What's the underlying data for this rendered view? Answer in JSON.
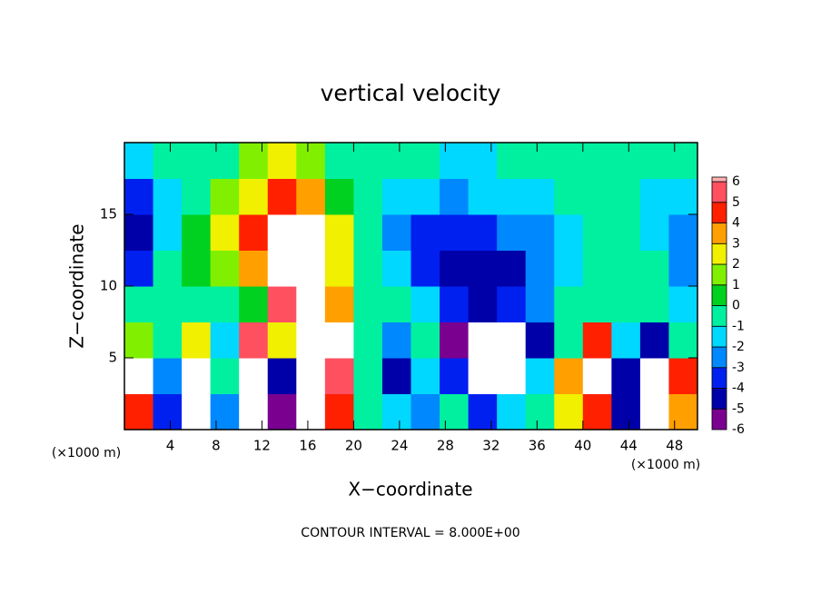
{
  "chart_data": {
    "type": "heatmap",
    "title": "vertical velocity",
    "x_label": "X−coordinate",
    "y_label": "Z−coordinate",
    "x_unit_label": "(×1000 m)",
    "annotation": "CONTOUR INTERVAL = 8.000E+00",
    "xlim": [
      0,
      50
    ],
    "ylim": [
      0,
      20
    ],
    "xticks": [
      4,
      8,
      12,
      16,
      20,
      24,
      28,
      32,
      36,
      40,
      44,
      48
    ],
    "yticks": [
      5,
      10,
      15
    ],
    "x": [
      1.25,
      3.75,
      6.25,
      8.75,
      11.25,
      13.75,
      16.25,
      18.75,
      21.25,
      23.75,
      26.25,
      28.75,
      31.25,
      33.75,
      36.25,
      38.75,
      41.25,
      43.75,
      46.25,
      48.75
    ],
    "y": [
      1.25,
      3.75,
      6.25,
      8.75,
      11.25,
      13.75,
      16.25,
      18.75
    ],
    "z": [
      [
        5,
        -3,
        7,
        -2,
        8,
        -5,
        8,
        5,
        0,
        -1,
        -2,
        0,
        -3,
        -1,
        0,
        3,
        5,
        -4,
        7,
        4
      ],
      [
        7,
        -2,
        7,
        0,
        8,
        -4,
        8,
        6,
        0,
        -4,
        -1,
        -3,
        7,
        8,
        -1,
        4,
        8,
        -4,
        8,
        5
      ],
      [
        2,
        0,
        3,
        -1,
        6,
        3,
        8,
        7,
        0,
        -2,
        0,
        -5,
        8,
        7,
        -4,
        0,
        5,
        -1,
        -4,
        0
      ],
      [
        0,
        0,
        0,
        0,
        1,
        6,
        8,
        4,
        0,
        0,
        -1,
        -3,
        -4,
        -3,
        -2,
        0,
        0,
        0,
        0,
        -1
      ],
      [
        -3,
        0,
        1,
        2,
        4,
        8,
        7,
        3,
        0,
        -1,
        -3,
        -4,
        -4,
        -4,
        -2,
        -1,
        0,
        0,
        0,
        -2
      ],
      [
        -4,
        -1,
        1,
        3,
        5,
        8,
        8,
        3,
        0,
        -2,
        -3,
        -3,
        -3,
        -2,
        -2,
        -1,
        0,
        0,
        -1,
        -2
      ],
      [
        -3,
        -1,
        0,
        2,
        3,
        5,
        4,
        1,
        0,
        -1,
        -1,
        -2,
        -1,
        -1,
        -1,
        0,
        0,
        0,
        -1,
        -1
      ],
      [
        -1,
        0,
        0,
        0,
        2,
        3,
        2,
        0,
        0,
        0,
        0,
        -1,
        -1,
        0,
        0,
        0,
        0,
        0,
        0,
        0
      ]
    ],
    "levels": [
      -6,
      -5,
      -4,
      -3,
      -2,
      -1,
      0,
      1,
      2,
      3,
      4,
      5,
      6
    ],
    "colors": [
      "#7a0090",
      "#0000a8",
      "#0020f0",
      "#0088ff",
      "#00d8ff",
      "#00f0a0",
      "#00d020",
      "#80f000",
      "#f0f000",
      "#ffa000",
      "#ff2000",
      "#ff5060"
    ],
    "above_color": "#ffffff",
    "top_color": "#ffb0b0"
  }
}
